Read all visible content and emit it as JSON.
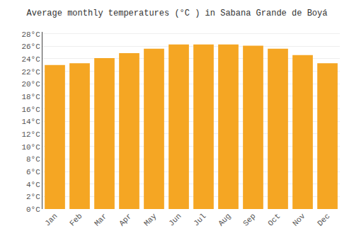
{
  "chart_data": {
    "type": "bar",
    "title": "Average monthly temperatures (°C ) in Sabana Grande de Boyá",
    "categories": [
      "Jan",
      "Feb",
      "Mar",
      "Apr",
      "May",
      "Jun",
      "Jul",
      "Aug",
      "Sep",
      "Oct",
      "Nov",
      "Dec"
    ],
    "values": [
      23.0,
      23.3,
      24.1,
      24.9,
      25.6,
      26.3,
      26.3,
      26.3,
      26.1,
      25.6,
      24.6,
      23.3
    ],
    "color": "#F5A623",
    "ylim": [
      0,
      28.3
    ],
    "yticks": [
      {
        "value": 0,
        "label": "0°C"
      },
      {
        "value": 2,
        "label": "2°C"
      },
      {
        "value": 4,
        "label": "4°C"
      },
      {
        "value": 6,
        "label": "6°C"
      },
      {
        "value": 8,
        "label": "8°C"
      },
      {
        "value": 10,
        "label": "10°C"
      },
      {
        "value": 12,
        "label": "12°C"
      },
      {
        "value": 14,
        "label": "14°C"
      },
      {
        "value": 16,
        "label": "16°C"
      },
      {
        "value": 18,
        "label": "18°C"
      },
      {
        "value": 20,
        "label": "20°C"
      },
      {
        "value": 22,
        "label": "22°C"
      },
      {
        "value": 24,
        "label": "24°C"
      },
      {
        "value": 26,
        "label": "26°C"
      },
      {
        "value": 28,
        "label": "28°C"
      }
    ],
    "grid": true
  }
}
